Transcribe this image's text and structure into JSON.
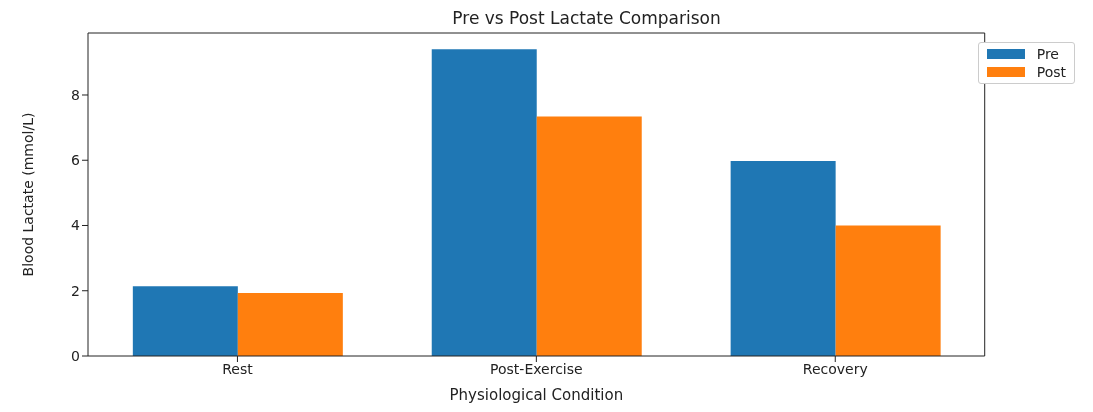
{
  "chart_data": {
    "type": "bar",
    "title": "Pre vs Post Lactate Comparison",
    "xlabel": "Physiological Condition",
    "ylabel": "Blood Lactate (mmol/L)",
    "categories": [
      "Rest",
      "Post-Exercise",
      "Recovery"
    ],
    "series": [
      {
        "name": "Pre",
        "color": "#1f77b4",
        "values": [
          2.14,
          9.4,
          5.98
        ]
      },
      {
        "name": "Post",
        "color": "#ff7f0e",
        "values": [
          1.93,
          7.34,
          4.0
        ]
      }
    ],
    "ylim": [
      0,
      9.9
    ],
    "yticks": [
      0,
      2,
      4,
      6,
      8
    ],
    "legend": "top right"
  }
}
